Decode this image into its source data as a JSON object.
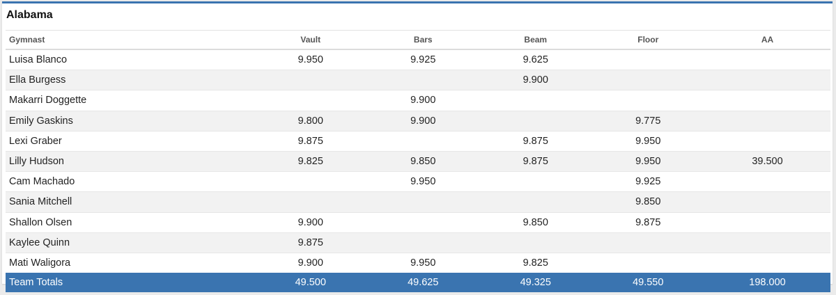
{
  "team": {
    "name": "Alabama"
  },
  "columns": [
    "Gymnast",
    "Vault",
    "Bars",
    "Beam",
    "Floor",
    "AA"
  ],
  "rows": [
    [
      "Luisa Blanco",
      "9.950",
      "9.925",
      "9.625",
      "",
      ""
    ],
    [
      "Ella Burgess",
      "",
      "",
      "9.900",
      "",
      ""
    ],
    [
      "Makarri Doggette",
      "",
      "9.900",
      "",
      "",
      ""
    ],
    [
      "Emily Gaskins",
      "9.800",
      "9.900",
      "",
      "9.775",
      ""
    ],
    [
      "Lexi Graber",
      "9.875",
      "",
      "9.875",
      "9.950",
      ""
    ],
    [
      "Lilly Hudson",
      "9.825",
      "9.850",
      "9.875",
      "9.950",
      "39.500"
    ],
    [
      "Cam Machado",
      "",
      "9.950",
      "",
      "9.925",
      ""
    ],
    [
      "Sania Mitchell",
      "",
      "",
      "",
      "9.850",
      ""
    ],
    [
      "Shallon Olsen",
      "9.900",
      "",
      "9.850",
      "9.875",
      ""
    ],
    [
      "Kaylee Quinn",
      "9.875",
      "",
      "",
      "",
      ""
    ],
    [
      "Mati Waligora",
      "9.900",
      "9.950",
      "9.825",
      "",
      ""
    ]
  ],
  "totals": [
    "Team Totals",
    "49.500",
    "49.625",
    "49.325",
    "49.550",
    "198.000"
  ],
  "colors": {
    "accent": "#3a74b0",
    "stripe": "#f2f2f2",
    "background": "#ebebeb"
  }
}
